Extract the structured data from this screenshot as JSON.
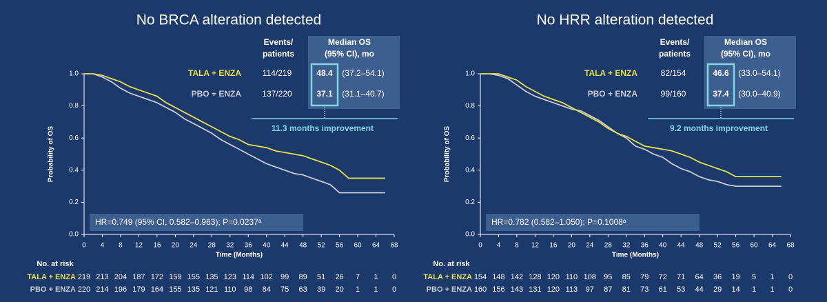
{
  "chart_data": [
    {
      "type": "line",
      "title": "No BRCA alteration detected",
      "x_label": "Time (Months)",
      "y_label": "Probability of OS",
      "xlim": [
        0,
        68
      ],
      "xticks": [
        0,
        4,
        8,
        12,
        16,
        20,
        24,
        28,
        32,
        36,
        40,
        44,
        48,
        52,
        56,
        60,
        64,
        68
      ],
      "ylim": [
        0,
        1
      ],
      "yticks": [
        {
          "value": 0,
          "label": "0.0"
        },
        0.2,
        0.4,
        0.6,
        0.8,
        {
          "value": 1,
          "label": "1.0"
        }
      ],
      "series": [
        {
          "name": "TALA + ENZA",
          "color": "#e6df4c",
          "x": [
            0,
            2,
            4,
            6,
            8,
            10,
            12,
            14,
            16,
            18,
            20,
            22,
            24,
            26,
            28,
            30,
            32,
            34,
            36,
            38,
            40,
            42,
            44,
            46,
            48,
            50,
            52,
            54,
            56,
            58,
            60,
            62,
            64,
            66
          ],
          "values": [
            1.0,
            1.0,
            0.99,
            0.97,
            0.95,
            0.92,
            0.9,
            0.88,
            0.86,
            0.82,
            0.79,
            0.76,
            0.73,
            0.7,
            0.67,
            0.64,
            0.61,
            0.59,
            0.56,
            0.55,
            0.54,
            0.52,
            0.51,
            0.5,
            0.49,
            0.47,
            0.45,
            0.43,
            0.4,
            0.35,
            0.35,
            0.35,
            0.35,
            0.35
          ]
        },
        {
          "name": "PBO + ENZA",
          "color": "#c9cbd4",
          "x": [
            0,
            2,
            4,
            6,
            8,
            10,
            12,
            14,
            16,
            18,
            20,
            22,
            24,
            26,
            28,
            30,
            32,
            34,
            36,
            38,
            40,
            42,
            44,
            46,
            48,
            50,
            52,
            54,
            56,
            58,
            60,
            62,
            64,
            66
          ],
          "values": [
            1.0,
            1.0,
            0.98,
            0.95,
            0.91,
            0.88,
            0.86,
            0.84,
            0.82,
            0.79,
            0.76,
            0.72,
            0.69,
            0.66,
            0.63,
            0.59,
            0.56,
            0.53,
            0.5,
            0.47,
            0.44,
            0.42,
            0.4,
            0.38,
            0.37,
            0.35,
            0.33,
            0.31,
            0.26,
            0.26,
            0.26,
            0.26,
            0.26,
            0.26
          ]
        }
      ],
      "table": {
        "headers": [
          [
            "Events/",
            "patients"
          ],
          [
            "Median OS",
            "(95% CI), mo"
          ]
        ],
        "rows": [
          [
            "114/219",
            "48.4",
            "(37.2–54.1)"
          ],
          [
            "137/220",
            "37.1",
            "(31.1–40.7)"
          ]
        ]
      },
      "annotation": "11.3 months improvement",
      "hr": "HR=0.749 (95% CI, 0.582–0.963); P=0.0237ᵃ",
      "at_risk": {
        "title": "No. at risk",
        "rows": [
          [
            219,
            213,
            204,
            187,
            172,
            159,
            155,
            135,
            123,
            114,
            102,
            99,
            89,
            51,
            26,
            7,
            1,
            0
          ],
          [
            220,
            214,
            196,
            179,
            164,
            155,
            135,
            121,
            110,
            98,
            84,
            75,
            63,
            39,
            20,
            1,
            1,
            0
          ]
        ]
      }
    },
    {
      "type": "line",
      "title": "No HRR alteration detected",
      "x_label": "Time (Months)",
      "y_label": "Probability of OS",
      "xlim": [
        0,
        68
      ],
      "xticks": [
        0,
        4,
        8,
        12,
        16,
        20,
        24,
        28,
        32,
        36,
        40,
        44,
        48,
        52,
        56,
        60,
        64,
        68
      ],
      "ylim": [
        0,
        1
      ],
      "yticks": [
        {
          "value": 0,
          "label": "0.0"
        },
        0.2,
        0.4,
        0.6,
        0.8,
        {
          "value": 1,
          "label": "1.0"
        }
      ],
      "series": [
        {
          "name": "TALA + ENZA",
          "color": "#e6df4c",
          "x": [
            0,
            2,
            4,
            6,
            8,
            10,
            12,
            14,
            16,
            18,
            20,
            22,
            24,
            26,
            28,
            30,
            32,
            34,
            36,
            38,
            40,
            42,
            44,
            46,
            48,
            50,
            52,
            54,
            56,
            58,
            60,
            62,
            64,
            66
          ],
          "values": [
            1.0,
            1.0,
            1.0,
            0.98,
            0.96,
            0.92,
            0.89,
            0.86,
            0.84,
            0.82,
            0.79,
            0.76,
            0.73,
            0.7,
            0.66,
            0.63,
            0.61,
            0.58,
            0.55,
            0.54,
            0.53,
            0.52,
            0.5,
            0.48,
            0.45,
            0.43,
            0.41,
            0.39,
            0.36,
            0.36,
            0.36,
            0.36,
            0.36,
            0.36
          ]
        },
        {
          "name": "PBO + ENZA",
          "color": "#c9cbd4",
          "x": [
            0,
            2,
            4,
            6,
            8,
            10,
            12,
            14,
            16,
            18,
            20,
            22,
            24,
            26,
            28,
            30,
            32,
            34,
            36,
            38,
            40,
            42,
            44,
            46,
            48,
            50,
            52,
            54,
            56,
            58,
            60,
            62,
            64,
            66
          ],
          "values": [
            1.0,
            1.0,
            0.99,
            0.97,
            0.93,
            0.89,
            0.86,
            0.84,
            0.82,
            0.8,
            0.78,
            0.77,
            0.74,
            0.71,
            0.67,
            0.63,
            0.6,
            0.55,
            0.53,
            0.5,
            0.48,
            0.44,
            0.41,
            0.39,
            0.36,
            0.34,
            0.33,
            0.31,
            0.3,
            0.3,
            0.3,
            0.3,
            0.3,
            0.3
          ]
        }
      ],
      "table": {
        "headers": [
          [
            "Events/",
            "patients"
          ],
          [
            "Median OS",
            "(95% CI), mo"
          ]
        ],
        "rows": [
          [
            "82/154",
            "46.6",
            "(33.0–54.1)"
          ],
          [
            "99/160",
            "37.4",
            "(30.0–40.9)"
          ]
        ]
      },
      "annotation": "9.2 months improvement",
      "hr": "HR=0.782 (0.582–1.050); P=0.1008ᵃ",
      "at_risk": {
        "title": "No. at risk",
        "rows": [
          [
            154,
            148,
            142,
            128,
            120,
            110,
            108,
            95,
            85,
            79,
            72,
            71,
            64,
            36,
            19,
            5,
            1,
            0
          ],
          [
            160,
            156,
            143,
            131,
            120,
            113,
            97,
            87,
            81,
            73,
            61,
            53,
            44,
            29,
            14,
            1,
            1,
            0
          ]
        ]
      }
    }
  ]
}
